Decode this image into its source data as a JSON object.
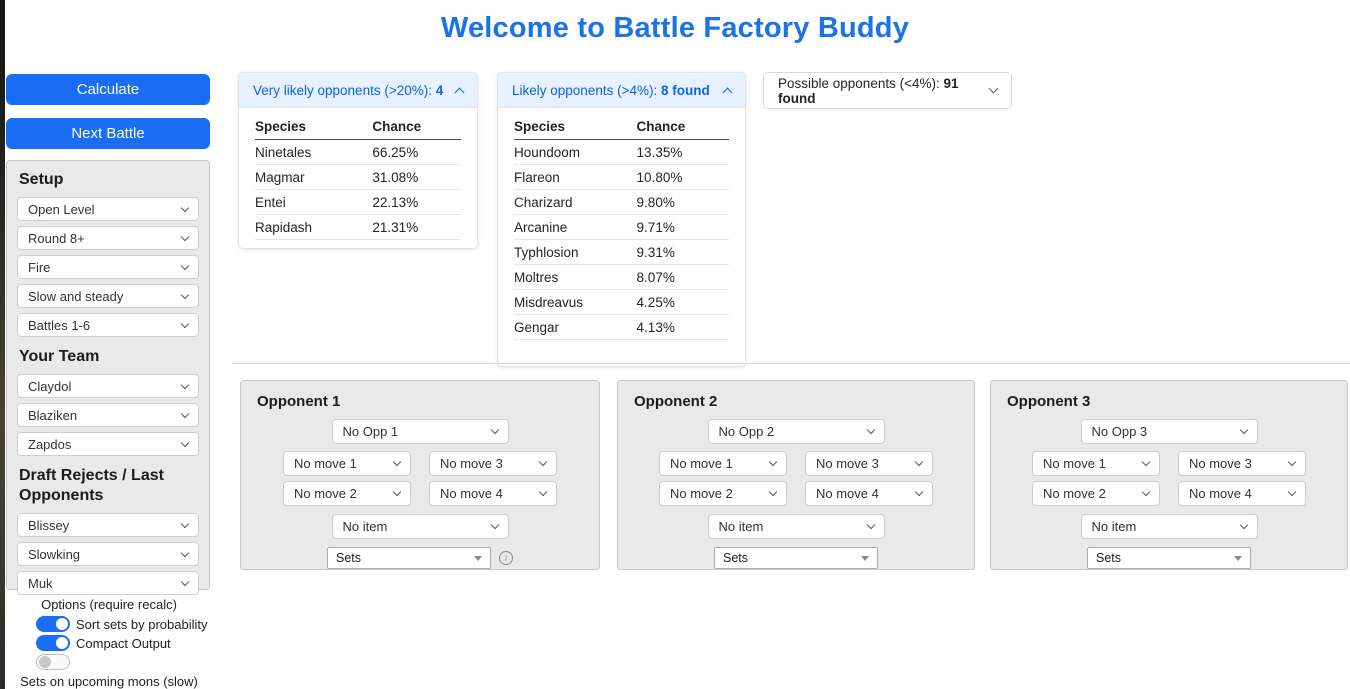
{
  "title": "Welcome to Battle Factory Buddy",
  "colors": {
    "accent": "#1a73e8",
    "btn": "#1a6ef5",
    "acc-bg": "#e7f1ff",
    "acc-text": "#0c63e4",
    "panel-gray": "#e9e9e9",
    "panel-border": "#c9c9c9"
  },
  "sidebar": {
    "calculate_label": "Calculate",
    "next_battle_label": "Next Battle",
    "setup_heading": "Setup",
    "setup_selects": [
      "Open Level",
      "Round 8+",
      "Fire",
      "Slow and steady",
      "Battles 1-6"
    ],
    "team_heading": "Your Team",
    "team_selects": [
      "Claydol",
      "Blaziken",
      "Zapdos"
    ],
    "rejects_heading": "Draft Rejects / Last Opponents",
    "rejects_selects": [
      "Blissey",
      "Slowking",
      "Muk"
    ],
    "options": {
      "heading": "Options (require recalc)",
      "toggles": [
        {
          "label": "Sort sets by probability",
          "on": true
        },
        {
          "label": "Compact Output",
          "on": true
        },
        {
          "label": "",
          "on": false
        }
      ],
      "bottom_label": "Sets on upcoming mons (slow)"
    }
  },
  "panels": [
    {
      "header_prefix": "Very likely opponents (>20%): ",
      "header_bold": "4",
      "expanded": true,
      "columns": [
        "Species",
        "Chance"
      ],
      "rows": [
        [
          "Ninetales",
          "66.25%"
        ],
        [
          "Magmar",
          "31.08%"
        ],
        [
          "Entei",
          "22.13%"
        ],
        [
          "Rapidash",
          "21.31%"
        ]
      ]
    },
    {
      "header_prefix": "Likely opponents (>4%): ",
      "header_bold": "8 found",
      "expanded": true,
      "columns": [
        "Species",
        "Chance"
      ],
      "rows": [
        [
          "Houndoom",
          "13.35%"
        ],
        [
          "Flareon",
          "10.80%"
        ],
        [
          "Charizard",
          "9.80%"
        ],
        [
          "Arcanine",
          "9.71%"
        ],
        [
          "Typhlosion",
          "9.31%"
        ],
        [
          "Moltres",
          "8.07%"
        ],
        [
          "Misdreavus",
          "4.25%"
        ],
        [
          "Gengar",
          "4.13%"
        ]
      ]
    },
    {
      "header_prefix": "Possible opponents (<4%): ",
      "header_bold": "91 found",
      "expanded": false
    }
  ],
  "opponents": [
    {
      "title": "Opponent 1",
      "opp_select": "No Opp 1",
      "move_selects": [
        "No move 1",
        "No move 3",
        "No move 2",
        "No move 4"
      ],
      "item_select": "No item",
      "sets_select": "Sets",
      "has_info": true
    },
    {
      "title": "Opponent 2",
      "opp_select": "No Opp 2",
      "move_selects": [
        "No move 1",
        "No move 3",
        "No move 2",
        "No move 4"
      ],
      "item_select": "No item",
      "sets_select": "Sets",
      "has_info": false
    },
    {
      "title": "Opponent 3",
      "opp_select": "No Opp 3",
      "move_selects": [
        "No move 1",
        "No move 3",
        "No move 2",
        "No move 4"
      ],
      "item_select": "No item",
      "sets_select": "Sets",
      "has_info": false
    }
  ],
  "icons": {
    "info_glyph": "i"
  }
}
